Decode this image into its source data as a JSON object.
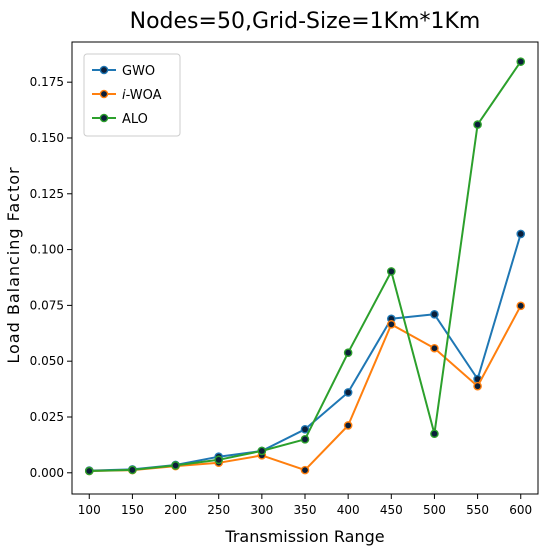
{
  "chart_data": {
    "type": "line",
    "title": "Nodes=50,Grid-Size=1Km*1Km",
    "xlabel": "Transmission Range",
    "ylabel": "Load Balancing Factor",
    "x": [
      100,
      150,
      200,
      250,
      300,
      350,
      400,
      450,
      500,
      550,
      600
    ],
    "x_ticks": [
      "100",
      "150",
      "200",
      "250",
      "300",
      "350",
      "400",
      "450",
      "500",
      "550",
      "600"
    ],
    "y_ticks": [
      "0.000",
      "0.025",
      "0.050",
      "0.075",
      "0.100",
      "0.125",
      "0.150",
      "0.175"
    ],
    "xlim": [
      80,
      620
    ],
    "ylim": [
      -0.0095,
      0.193
    ],
    "grid": false,
    "legend_position": "top-left",
    "series": [
      {
        "name": "GWO",
        "color": "#1f77b4",
        "values": [
          0.001,
          0.0015,
          0.0035,
          0.0072,
          0.0098,
          0.0195,
          0.036,
          0.069,
          0.071,
          0.042,
          0.107
        ]
      },
      {
        "name": "WOA",
        "name_prefix": "i",
        "color": "#ff7f0e",
        "values": [
          0.0008,
          0.0012,
          0.003,
          0.0045,
          0.0078,
          0.0012,
          0.0212,
          0.0665,
          0.0558,
          0.0388,
          0.0748
        ]
      },
      {
        "name": "ALO",
        "color": "#2ca02c",
        "values": [
          0.0008,
          0.0013,
          0.0033,
          0.0058,
          0.0098,
          0.015,
          0.0538,
          0.0902,
          0.0175,
          0.156,
          0.1842
        ]
      }
    ]
  }
}
